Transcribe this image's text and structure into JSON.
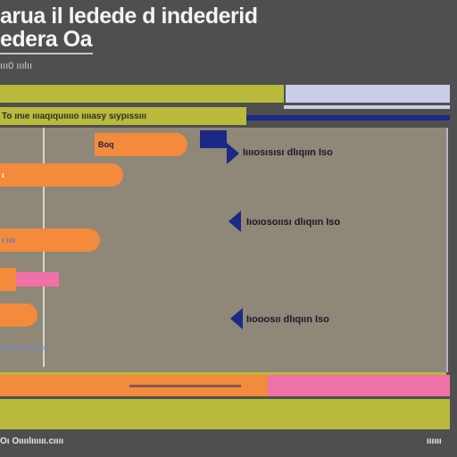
{
  "header": {
    "title_line1": "arua il ledede d indederid",
    "title_line2": "edera Oa",
    "subheading": "ııı0 ııılıı"
  },
  "chart_header": {
    "text": "To ınıe ıııaqıquııııo ııııasy sıypıssııı"
  },
  "rows": [
    {
      "label": "Boq"
    },
    {
      "label": "ı"
    },
    {
      "label": "ı ıııı"
    },
    {
      "label": ""
    },
    {
      "label": ""
    }
  ],
  "annotations": [
    {
      "text": "Iıııosısısı dlıqıın Iso"
    },
    {
      "text": "Iıoıosoıısı dlıqıın Iso"
    },
    {
      "text": "Iıooosıı dlıqıın Iso"
    }
  ],
  "axis_ticks": {
    "text": "ıııııııııı ııııııı ııııı"
  },
  "footer": {
    "left": "Oı Oıııılıııııı.cıııı",
    "right": "ıııııı"
  },
  "colors": {
    "background": "#4f4f4f",
    "olive": "#b9ba3c",
    "orange": "#f48a3c",
    "pink": "#f070a8",
    "navy": "#1a2a86",
    "panel": "#8f8777"
  }
}
